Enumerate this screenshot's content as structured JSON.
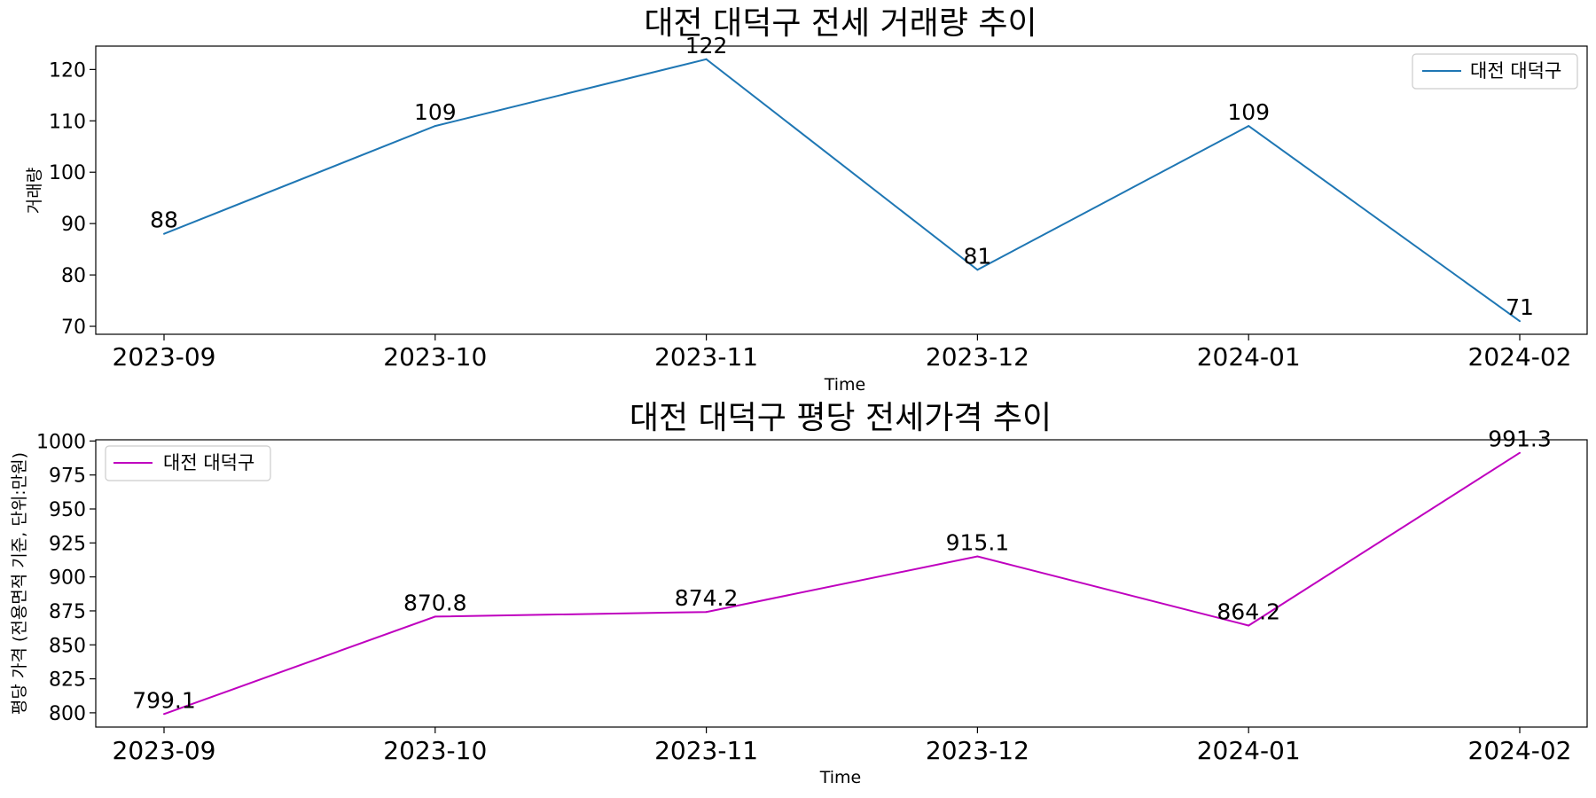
{
  "chart_data": [
    {
      "type": "line",
      "title": "대전 대덕구 전세 거래량 추이",
      "xlabel": "Time",
      "ylabel": "거래량",
      "categories": [
        "2023-09",
        "2023-10",
        "2023-11",
        "2023-12",
        "2024-01",
        "2024-02"
      ],
      "series": [
        {
          "name": "대전 대덕구",
          "color": "#1f77b4",
          "values": [
            88,
            109,
            122,
            81,
            109,
            71
          ],
          "labels": [
            "88",
            "109",
            "122",
            "81",
            "109",
            "71"
          ]
        }
      ],
      "ylim": [
        68.45,
        124.55
      ],
      "yticks": [
        70,
        80,
        90,
        100,
        110,
        120
      ],
      "ytick_labels": [
        "70",
        "80",
        "90",
        "100",
        "110",
        "120"
      ],
      "legend": "top-right",
      "grid": false
    },
    {
      "type": "line",
      "title": "대전 대덕구 평당 전세가격 추이",
      "xlabel": "Time",
      "ylabel": "평당 가격 (전용면적 기준, 단위:만원)",
      "categories": [
        "2023-09",
        "2023-10",
        "2023-11",
        "2023-12",
        "2024-01",
        "2024-02"
      ],
      "series": [
        {
          "name": "대전 대덕구",
          "color": "#bf00bf",
          "values": [
            799.1,
            870.8,
            874.2,
            915.1,
            864.2,
            991.3
          ],
          "labels": [
            "799.1",
            "870.8",
            "874.2",
            "915.1",
            "864.2",
            "991.3"
          ]
        }
      ],
      "ylim": [
        789.5,
        1000.9
      ],
      "yticks": [
        800,
        825,
        850,
        875,
        900,
        925,
        950,
        975,
        1000
      ],
      "ytick_labels": [
        "800",
        "825",
        "850",
        "875",
        "900",
        "925",
        "950",
        "975",
        "1000"
      ],
      "legend": "top-left",
      "grid": false
    }
  ]
}
